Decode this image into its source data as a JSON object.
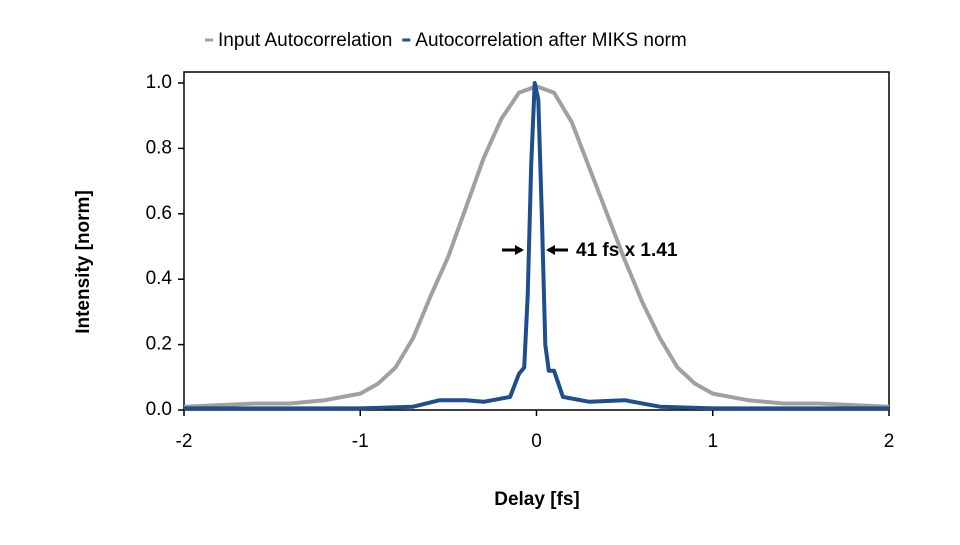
{
  "chart_data": {
    "type": "line",
    "xlabel": "Delay [fs]",
    "ylabel": "Intensity [norm]",
    "annotation": "41 fs x 1.41",
    "series": [
      {
        "name": "Input Autocorrelation",
        "color": "#a0a0a0",
        "x": [
          -2,
          -1.8,
          -1.6,
          -1.4,
          -1.2,
          -1.1,
          -1.0,
          -0.9,
          -0.8,
          -0.7,
          -0.6,
          -0.5,
          -0.4,
          -0.3,
          -0.2,
          -0.1,
          0,
          0.1,
          0.2,
          0.3,
          0.4,
          0.5,
          0.6,
          0.7,
          0.8,
          0.9,
          1.0,
          1.2,
          1.4,
          1.6,
          1.8,
          2.0
        ],
        "values": [
          0.01,
          0.015,
          0.02,
          0.02,
          0.03,
          0.04,
          0.05,
          0.08,
          0.13,
          0.22,
          0.35,
          0.47,
          0.62,
          0.77,
          0.89,
          0.97,
          0.99,
          0.97,
          0.88,
          0.74,
          0.6,
          0.46,
          0.33,
          0.22,
          0.13,
          0.08,
          0.05,
          0.03,
          0.02,
          0.02,
          0.015,
          0.01
        ]
      },
      {
        "name": "Autocorrelation after MIKS norm",
        "color": "#1f4e8c",
        "x": [
          -2,
          -1,
          -0.7,
          -0.55,
          -0.4,
          -0.3,
          -0.15,
          -0.1,
          -0.07,
          -0.05,
          -0.03,
          -0.01,
          0.01,
          0.03,
          0.05,
          0.07,
          0.1,
          0.15,
          0.3,
          0.5,
          0.7,
          1,
          2
        ],
        "values": [
          0.005,
          0.005,
          0.01,
          0.03,
          0.03,
          0.025,
          0.04,
          0.11,
          0.13,
          0.35,
          0.75,
          1.0,
          0.95,
          0.6,
          0.2,
          0.12,
          0.12,
          0.04,
          0.025,
          0.03,
          0.01,
          0.005,
          0.005
        ]
      }
    ],
    "xlim": [
      -2,
      2
    ],
    "xticks": [
      -2,
      -1,
      0,
      1,
      2
    ],
    "ylim": [
      0,
      1.0
    ],
    "yticks": [
      {
        "value": 0,
        "label": "0.0"
      },
      0.2,
      0.4,
      0.6,
      0.8,
      {
        "value": 1,
        "label": "1.0"
      }
    ],
    "legend": "top"
  }
}
